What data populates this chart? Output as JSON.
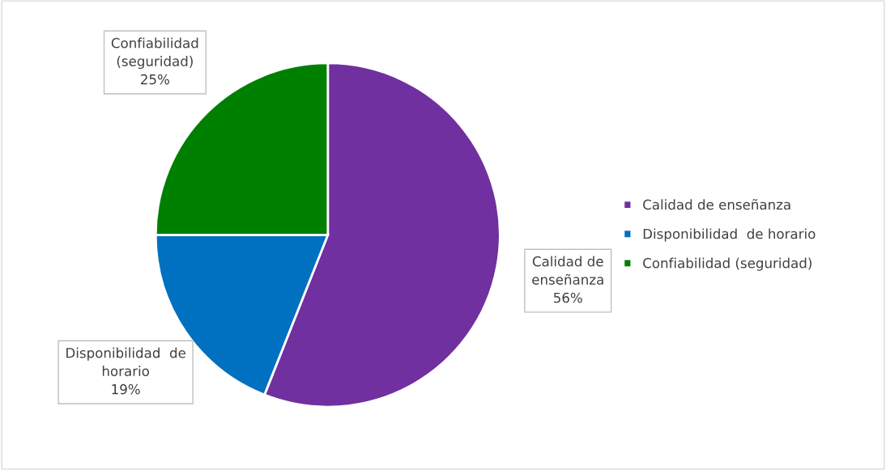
{
  "chart_data": {
    "type": "pie",
    "categories": [
      "Calidad de enseñanza",
      "Disponibilidad  de horario",
      "Confiabilidad (seguridad)"
    ],
    "values": [
      56,
      19,
      25
    ],
    "colors": [
      "#7030a0",
      "#0070c0",
      "#008000"
    ],
    "value_labels": [
      "56%",
      "19%",
      "25%"
    ],
    "legend": "right"
  }
}
